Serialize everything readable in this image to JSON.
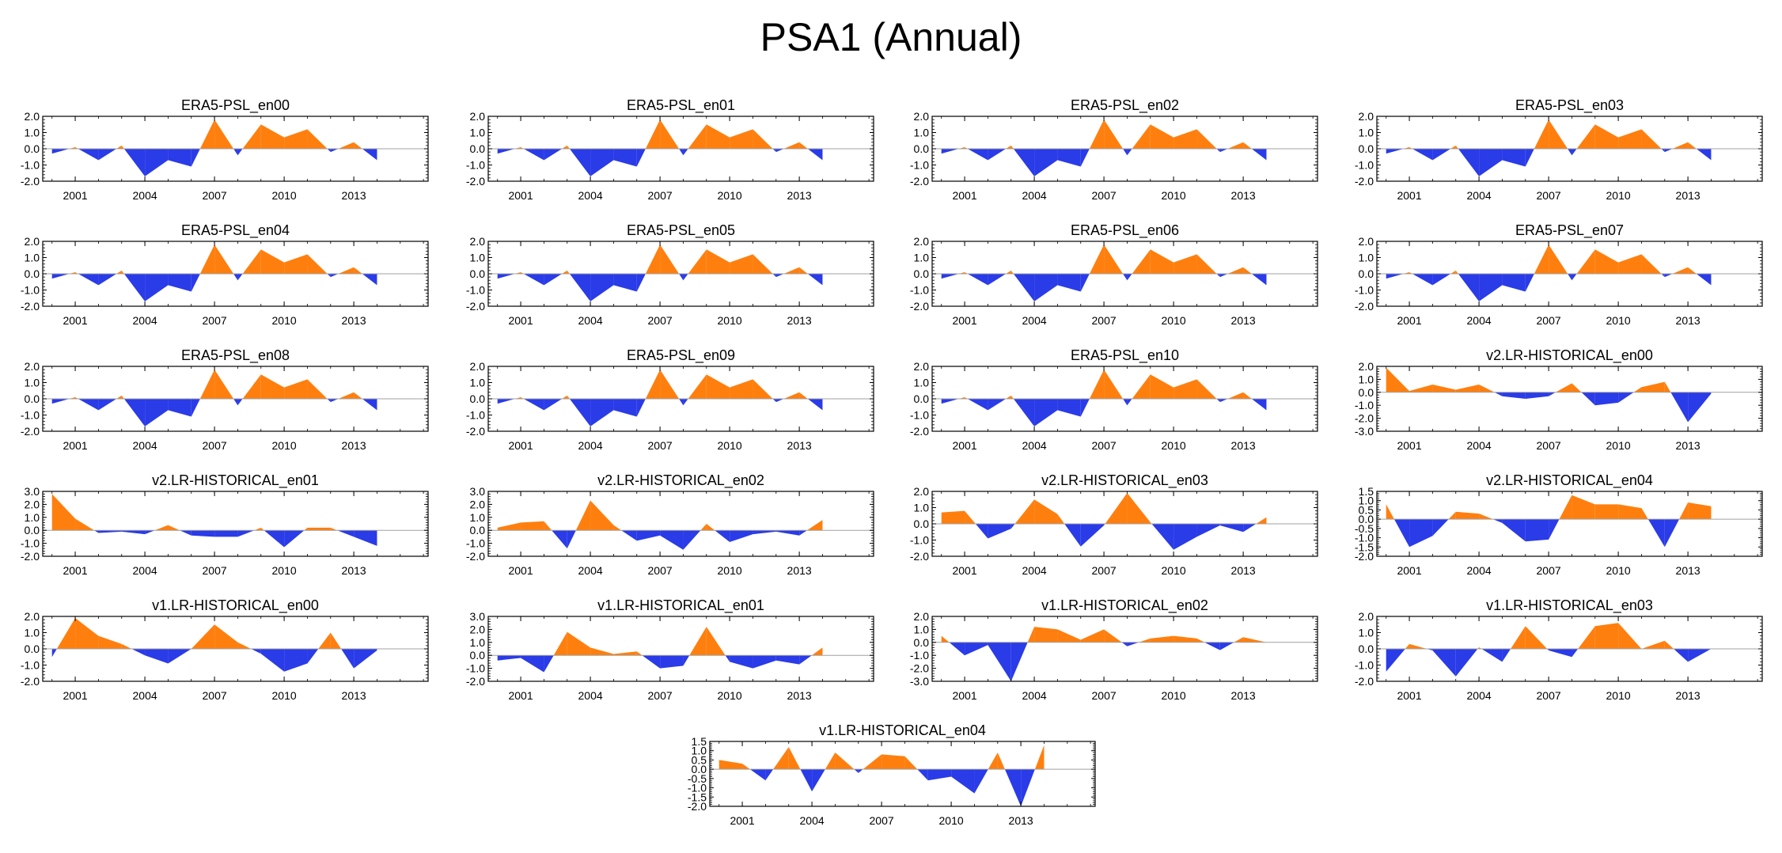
{
  "title": "PSA1 (Annual)",
  "colors": {
    "positive": "#ff7f0e",
    "negative": "#2a3be8",
    "axis": "#000000",
    "zero_line": "#a0a0a0"
  },
  "chart_data": [
    {
      "type": "area",
      "title": "ERA5-PSL_en00",
      "x": [
        2000,
        2001,
        2002,
        2003,
        2004,
        2005,
        2006,
        2007,
        2008,
        2009,
        2010,
        2011,
        2012,
        2013,
        2014
      ],
      "values": [
        -0.3,
        0.1,
        -0.7,
        0.2,
        -1.7,
        -0.7,
        -1.1,
        1.8,
        -0.4,
        1.5,
        0.7,
        1.2,
        -0.2,
        0.4,
        -0.7
      ],
      "ylim": [
        -2,
        2
      ],
      "yticks": [
        "2.0",
        "1.0",
        "0.0",
        "-1.0",
        "-2.0"
      ],
      "xticks": [
        "2001",
        "2004",
        "2007",
        "2010",
        "2013"
      ],
      "grid": false
    },
    {
      "type": "area",
      "title": "ERA5-PSL_en01",
      "x": [
        2000,
        2001,
        2002,
        2003,
        2004,
        2005,
        2006,
        2007,
        2008,
        2009,
        2010,
        2011,
        2012,
        2013,
        2014
      ],
      "values": [
        -0.3,
        0.1,
        -0.7,
        0.2,
        -1.7,
        -0.7,
        -1.1,
        1.8,
        -0.4,
        1.5,
        0.7,
        1.2,
        -0.2,
        0.4,
        -0.7
      ],
      "ylim": [
        -2,
        2
      ],
      "yticks": [
        "2.0",
        "1.0",
        "0.0",
        "-1.0",
        "-2.0"
      ],
      "xticks": [
        "2001",
        "2004",
        "2007",
        "2010",
        "2013"
      ],
      "grid": false
    },
    {
      "type": "area",
      "title": "ERA5-PSL_en02",
      "x": [
        2000,
        2001,
        2002,
        2003,
        2004,
        2005,
        2006,
        2007,
        2008,
        2009,
        2010,
        2011,
        2012,
        2013,
        2014
      ],
      "values": [
        -0.3,
        0.1,
        -0.7,
        0.2,
        -1.7,
        -0.7,
        -1.1,
        1.8,
        -0.4,
        1.5,
        0.7,
        1.2,
        -0.2,
        0.4,
        -0.7
      ],
      "ylim": [
        -2,
        2
      ],
      "yticks": [
        "2.0",
        "1.0",
        "0.0",
        "-1.0",
        "-2.0"
      ],
      "xticks": [
        "2001",
        "2004",
        "2007",
        "2010",
        "2013"
      ],
      "grid": false
    },
    {
      "type": "area",
      "title": "ERA5-PSL_en03",
      "x": [
        2000,
        2001,
        2002,
        2003,
        2004,
        2005,
        2006,
        2007,
        2008,
        2009,
        2010,
        2011,
        2012,
        2013,
        2014
      ],
      "values": [
        -0.3,
        0.1,
        -0.7,
        0.2,
        -1.7,
        -0.7,
        -1.1,
        1.8,
        -0.4,
        1.5,
        0.7,
        1.2,
        -0.2,
        0.4,
        -0.7
      ],
      "ylim": [
        -2,
        2
      ],
      "yticks": [
        "2.0",
        "1.0",
        "0.0",
        "-1.0",
        "-2.0"
      ],
      "xticks": [
        "2001",
        "2004",
        "2007",
        "2010",
        "2013"
      ],
      "grid": false
    },
    {
      "type": "area",
      "title": "ERA5-PSL_en04",
      "x": [
        2000,
        2001,
        2002,
        2003,
        2004,
        2005,
        2006,
        2007,
        2008,
        2009,
        2010,
        2011,
        2012,
        2013,
        2014
      ],
      "values": [
        -0.3,
        0.1,
        -0.7,
        0.2,
        -1.7,
        -0.7,
        -1.1,
        1.8,
        -0.4,
        1.5,
        0.7,
        1.2,
        -0.2,
        0.4,
        -0.7
      ],
      "ylim": [
        -2,
        2
      ],
      "yticks": [
        "2.0",
        "1.0",
        "0.0",
        "-1.0",
        "-2.0"
      ],
      "xticks": [
        "2001",
        "2004",
        "2007",
        "2010",
        "2013"
      ],
      "grid": false
    },
    {
      "type": "area",
      "title": "ERA5-PSL_en05",
      "x": [
        2000,
        2001,
        2002,
        2003,
        2004,
        2005,
        2006,
        2007,
        2008,
        2009,
        2010,
        2011,
        2012,
        2013,
        2014
      ],
      "values": [
        -0.3,
        0.1,
        -0.7,
        0.2,
        -1.7,
        -0.7,
        -1.1,
        1.8,
        -0.4,
        1.5,
        0.7,
        1.2,
        -0.2,
        0.4,
        -0.7
      ],
      "ylim": [
        -2,
        2
      ],
      "yticks": [
        "2.0",
        "1.0",
        "0.0",
        "-1.0",
        "-2.0"
      ],
      "xticks": [
        "2001",
        "2004",
        "2007",
        "2010",
        "2013"
      ],
      "grid": false
    },
    {
      "type": "area",
      "title": "ERA5-PSL_en06",
      "x": [
        2000,
        2001,
        2002,
        2003,
        2004,
        2005,
        2006,
        2007,
        2008,
        2009,
        2010,
        2011,
        2012,
        2013,
        2014
      ],
      "values": [
        -0.3,
        0.1,
        -0.7,
        0.2,
        -1.7,
        -0.7,
        -1.1,
        1.8,
        -0.4,
        1.5,
        0.7,
        1.2,
        -0.2,
        0.4,
        -0.7
      ],
      "ylim": [
        -2,
        2
      ],
      "yticks": [
        "2.0",
        "1.0",
        "0.0",
        "-1.0",
        "-2.0"
      ],
      "xticks": [
        "2001",
        "2004",
        "2007",
        "2010",
        "2013"
      ],
      "grid": false
    },
    {
      "type": "area",
      "title": "ERA5-PSL_en07",
      "x": [
        2000,
        2001,
        2002,
        2003,
        2004,
        2005,
        2006,
        2007,
        2008,
        2009,
        2010,
        2011,
        2012,
        2013,
        2014
      ],
      "values": [
        -0.3,
        0.1,
        -0.7,
        0.2,
        -1.7,
        -0.7,
        -1.1,
        1.8,
        -0.4,
        1.5,
        0.7,
        1.2,
        -0.2,
        0.4,
        -0.7
      ],
      "ylim": [
        -2,
        2
      ],
      "yticks": [
        "2.0",
        "1.0",
        "0.0",
        "-1.0",
        "-2.0"
      ],
      "xticks": [
        "2001",
        "2004",
        "2007",
        "2010",
        "2013"
      ],
      "grid": false
    },
    {
      "type": "area",
      "title": "ERA5-PSL_en08",
      "x": [
        2000,
        2001,
        2002,
        2003,
        2004,
        2005,
        2006,
        2007,
        2008,
        2009,
        2010,
        2011,
        2012,
        2013,
        2014
      ],
      "values": [
        -0.3,
        0.1,
        -0.7,
        0.2,
        -1.7,
        -0.7,
        -1.1,
        1.8,
        -0.4,
        1.5,
        0.7,
        1.2,
        -0.2,
        0.4,
        -0.7
      ],
      "ylim": [
        -2,
        2
      ],
      "yticks": [
        "2.0",
        "1.0",
        "0.0",
        "-1.0",
        "-2.0"
      ],
      "xticks": [
        "2001",
        "2004",
        "2007",
        "2010",
        "2013"
      ],
      "grid": false
    },
    {
      "type": "area",
      "title": "ERA5-PSL_en09",
      "x": [
        2000,
        2001,
        2002,
        2003,
        2004,
        2005,
        2006,
        2007,
        2008,
        2009,
        2010,
        2011,
        2012,
        2013,
        2014
      ],
      "values": [
        -0.3,
        0.1,
        -0.7,
        0.2,
        -1.7,
        -0.7,
        -1.1,
        1.8,
        -0.4,
        1.5,
        0.7,
        1.2,
        -0.2,
        0.4,
        -0.7
      ],
      "ylim": [
        -2,
        2
      ],
      "yticks": [
        "2.0",
        "1.0",
        "0.0",
        "-1.0",
        "-2.0"
      ],
      "xticks": [
        "2001",
        "2004",
        "2007",
        "2010",
        "2013"
      ],
      "grid": false
    },
    {
      "type": "area",
      "title": "ERA5-PSL_en10",
      "x": [
        2000,
        2001,
        2002,
        2003,
        2004,
        2005,
        2006,
        2007,
        2008,
        2009,
        2010,
        2011,
        2012,
        2013,
        2014
      ],
      "values": [
        -0.3,
        0.1,
        -0.7,
        0.2,
        -1.7,
        -0.7,
        -1.1,
        1.8,
        -0.4,
        1.5,
        0.7,
        1.2,
        -0.2,
        0.4,
        -0.7
      ],
      "ylim": [
        -2,
        2
      ],
      "yticks": [
        "2.0",
        "1.0",
        "0.0",
        "-1.0",
        "-2.0"
      ],
      "xticks": [
        "2001",
        "2004",
        "2007",
        "2010",
        "2013"
      ],
      "grid": false
    },
    {
      "type": "area",
      "title": "v2.LR-HISTORICAL_en00",
      "x": [
        2000,
        2001,
        2002,
        2003,
        2004,
        2005,
        2006,
        2007,
        2008,
        2009,
        2010,
        2011,
        2012,
        2013,
        2014
      ],
      "values": [
        1.9,
        0.1,
        0.6,
        0.2,
        0.6,
        -0.3,
        -0.5,
        -0.3,
        0.7,
        -1.0,
        -0.8,
        0.4,
        0.8,
        -2.3,
        -0.1
      ],
      "ylim": [
        -3,
        2
      ],
      "yticks": [
        "2.0",
        "1.0",
        "0.0",
        "-1.0",
        "-2.0",
        "-3.0"
      ],
      "xticks": [
        "2001",
        "2004",
        "2007",
        "2010",
        "2013"
      ],
      "grid": false
    },
    {
      "type": "area",
      "title": "v2.LR-HISTORICAL_en01",
      "x": [
        2000,
        2001,
        2002,
        2003,
        2004,
        2005,
        2006,
        2007,
        2008,
        2009,
        2010,
        2011,
        2012,
        2013,
        2014
      ],
      "values": [
        2.8,
        0.9,
        -0.2,
        -0.1,
        -0.3,
        0.4,
        -0.4,
        -0.5,
        -0.5,
        0.2,
        -1.3,
        0.2,
        0.2,
        -0.5,
        -1.2
      ],
      "ylim": [
        -2,
        3
      ],
      "yticks": [
        "3.0",
        "2.0",
        "1.0",
        "0.0",
        "-1.0",
        "-2.0"
      ],
      "xticks": [
        "2001",
        "2004",
        "2007",
        "2010",
        "2013"
      ],
      "grid": false
    },
    {
      "type": "area",
      "title": "v2.LR-HISTORICAL_en02",
      "x": [
        2000,
        2001,
        2002,
        2003,
        2004,
        2005,
        2006,
        2007,
        2008,
        2009,
        2010,
        2011,
        2012,
        2013,
        2014
      ],
      "values": [
        0.2,
        0.6,
        0.7,
        -1.4,
        2.3,
        0.4,
        -0.8,
        -0.4,
        -1.5,
        0.5,
        -0.9,
        -0.3,
        -0.1,
        -0.4,
        0.8
      ],
      "ylim": [
        -2,
        3
      ],
      "yticks": [
        "3.0",
        "2.0",
        "1.0",
        "0.0",
        "-1.0",
        "-2.0"
      ],
      "xticks": [
        "2001",
        "2004",
        "2007",
        "2010",
        "2013"
      ],
      "grid": false
    },
    {
      "type": "area",
      "title": "v2.LR-HISTORICAL_en03",
      "x": [
        2000,
        2001,
        2002,
        2003,
        2004,
        2005,
        2006,
        2007,
        2008,
        2009,
        2010,
        2011,
        2012,
        2013,
        2014
      ],
      "values": [
        0.7,
        0.8,
        -0.9,
        -0.3,
        1.5,
        0.6,
        -1.4,
        -0.1,
        1.9,
        0.1,
        -1.6,
        -0.8,
        -0.1,
        -0.5,
        0.4
      ],
      "ylim": [
        -2,
        2
      ],
      "yticks": [
        "2.0",
        "1.0",
        "0.0",
        "-1.0",
        "-2.0"
      ],
      "xticks": [
        "2001",
        "2004",
        "2007",
        "2010",
        "2013"
      ],
      "grid": false
    },
    {
      "type": "area",
      "title": "v2.LR-HISTORICAL_en04",
      "x": [
        2000,
        2001,
        2002,
        2003,
        2004,
        2005,
        2006,
        2007,
        2008,
        2009,
        2010,
        2011,
        2012,
        2013,
        2014
      ],
      "values": [
        0.8,
        -1.5,
        -0.9,
        0.4,
        0.3,
        -0.2,
        -1.2,
        -1.1,
        1.3,
        0.8,
        0.8,
        0.6,
        -1.5,
        0.9,
        0.7
      ],
      "ylim": [
        -2,
        1.5
      ],
      "yticks": [
        "1.5",
        "1.0",
        "0.5",
        "0.0",
        "-0.5",
        "-1.0",
        "-1.5",
        "-2.0"
      ],
      "xticks": [
        "2001",
        "2004",
        "2007",
        "2010",
        "2013"
      ],
      "grid": false
    },
    {
      "type": "area",
      "title": "v1.LR-HISTORICAL_en00",
      "x": [
        2000,
        2001,
        2002,
        2003,
        2004,
        2005,
        2006,
        2007,
        2008,
        2009,
        2010,
        2011,
        2012,
        2013,
        2014
      ],
      "values": [
        -0.5,
        1.9,
        0.8,
        0.3,
        -0.4,
        -0.9,
        0.0,
        1.5,
        0.4,
        -0.3,
        -1.4,
        -0.9,
        1.0,
        -1.2,
        -0.1
      ],
      "ylim": [
        -2,
        2
      ],
      "yticks": [
        "2.0",
        "1.0",
        "0.0",
        "-1.0",
        "-2.0"
      ],
      "xticks": [
        "2001",
        "2004",
        "2007",
        "2010",
        "2013"
      ],
      "grid": false
    },
    {
      "type": "area",
      "title": "v1.LR-HISTORICAL_en01",
      "x": [
        2000,
        2001,
        2002,
        2003,
        2004,
        2005,
        2006,
        2007,
        2008,
        2009,
        2010,
        2011,
        2012,
        2013,
        2014
      ],
      "values": [
        -0.4,
        -0.2,
        -1.3,
        1.8,
        0.6,
        0.1,
        0.3,
        -1.0,
        -0.8,
        2.2,
        -0.5,
        -1.0,
        -0.4,
        -0.7,
        0.6
      ],
      "ylim": [
        -2,
        3
      ],
      "yticks": [
        "3.0",
        "2.0",
        "1.0",
        "0.0",
        "-1.0",
        "-2.0"
      ],
      "xticks": [
        "2001",
        "2004",
        "2007",
        "2010",
        "2013"
      ],
      "grid": false
    },
    {
      "type": "area",
      "title": "v1.LR-HISTORICAL_en02",
      "x": [
        2000,
        2001,
        2002,
        2003,
        2004,
        2005,
        2006,
        2007,
        2008,
        2009,
        2010,
        2011,
        2012,
        2013,
        2014
      ],
      "values": [
        0.5,
        -1.0,
        -0.2,
        -3.0,
        1.2,
        1.0,
        0.2,
        1.0,
        -0.3,
        0.3,
        0.5,
        0.3,
        -0.6,
        0.4,
        0.0
      ],
      "ylim": [
        -3,
        2
      ],
      "yticks": [
        "2.0",
        "1.0",
        "0.0",
        "-1.0",
        "-2.0",
        "-3.0"
      ],
      "xticks": [
        "2001",
        "2004",
        "2007",
        "2010",
        "2013"
      ],
      "grid": false
    },
    {
      "type": "area",
      "title": "v1.LR-HISTORICAL_en03",
      "x": [
        2000,
        2001,
        2002,
        2003,
        2004,
        2005,
        2006,
        2007,
        2008,
        2009,
        2010,
        2011,
        2012,
        2013,
        2014
      ],
      "values": [
        -1.4,
        0.3,
        -0.1,
        -1.7,
        0.1,
        -0.8,
        1.4,
        -0.1,
        -0.5,
        1.4,
        1.6,
        0.0,
        0.5,
        -0.8,
        0.0
      ],
      "ylim": [
        -2,
        2
      ],
      "yticks": [
        "2.0",
        "1.0",
        "0.0",
        "-1.0",
        "-2.0"
      ],
      "xticks": [
        "2001",
        "2004",
        "2007",
        "2010",
        "2013"
      ],
      "grid": false
    },
    {
      "type": "area",
      "title": "v1.LR-HISTORICAL_en04",
      "x": [
        2000,
        2001,
        2002,
        2003,
        2004,
        2005,
        2006,
        2007,
        2008,
        2009,
        2010,
        2011,
        2012,
        2013,
        2014
      ],
      "values": [
        0.5,
        0.3,
        -0.6,
        1.2,
        -1.2,
        0.9,
        -0.2,
        0.8,
        0.7,
        -0.6,
        -0.4,
        -1.3,
        0.9,
        -2.0,
        1.3
      ],
      "ylim": [
        -2,
        1.5
      ],
      "yticks": [
        "1.5",
        "1.0",
        "0.5",
        "0.0",
        "-0.5",
        "-1.0",
        "-1.5",
        "-2.0"
      ],
      "xticks": [
        "2001",
        "2004",
        "2007",
        "2010",
        "2013"
      ],
      "grid": false
    }
  ]
}
